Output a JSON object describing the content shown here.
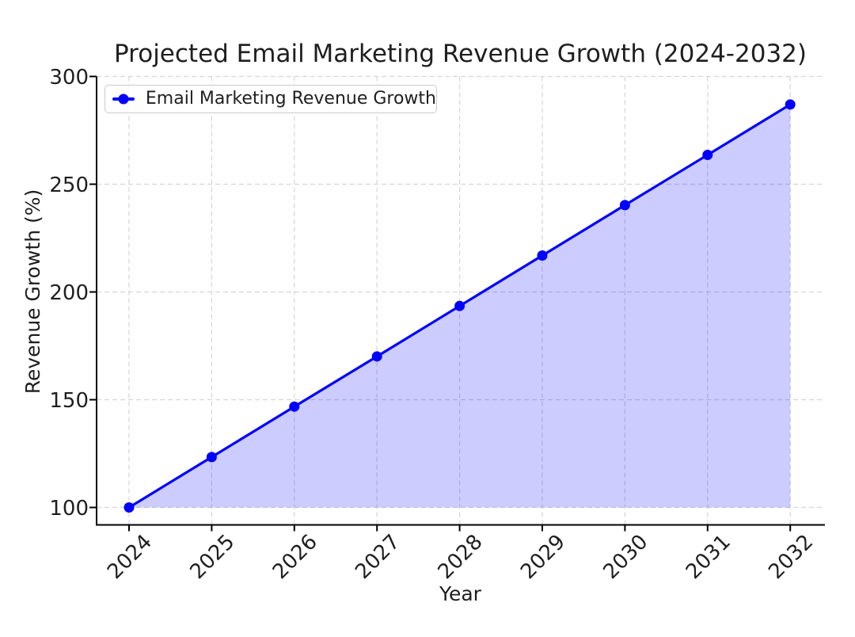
{
  "chart_data": {
    "type": "line",
    "title": "Projected Email Marketing Revenue Growth (2024-2032)",
    "xlabel": "Year",
    "ylabel": "Revenue Growth (%)",
    "categories": [
      "2024",
      "2025",
      "2026",
      "2027",
      "2028",
      "2029",
      "2030",
      "2031",
      "2032"
    ],
    "series": [
      {
        "name": "Email Marketing Revenue Growth",
        "values": [
          100,
          123.4,
          146.8,
          170.1,
          193.5,
          216.9,
          240.3,
          263.6,
          287
        ]
      }
    ],
    "yticks": [
      100,
      150,
      200,
      250,
      300
    ],
    "ylim": [
      91.5,
      300
    ],
    "grid": "dashed",
    "grid_on": true,
    "legend_position": "upper-left",
    "marker": "circle",
    "area_fill": true,
    "fill_baseline": 100,
    "colors": {
      "line": "#0000ff",
      "fill": "#0000ff",
      "fill_opacity": 0.2,
      "fill_rendered": "#ccccff",
      "grid": "#d6d6d6",
      "text": "#1f1f1f",
      "spine": "#000000",
      "legend_border": "#cbcbcb"
    }
  }
}
